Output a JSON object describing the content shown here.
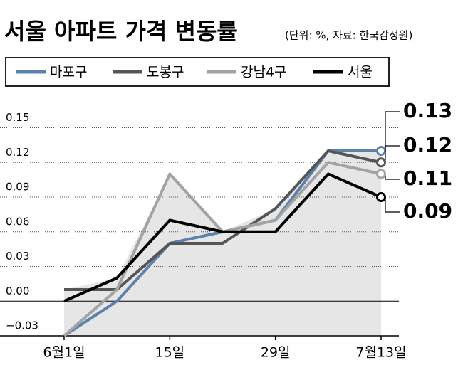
{
  "chart_data": {
    "type": "line",
    "title": "서울 아파트 가격 변동률",
    "subtitle": "(단위: %, 자료: 한국감정원)",
    "categories": [
      "6월1일",
      null,
      "15일",
      null,
      "29일",
      null,
      "7월13일"
    ],
    "series": [
      {
        "name": "마포구",
        "color": "#5b82ad",
        "values": [
          -0.03,
          0.0,
          0.05,
          0.06,
          0.07,
          0.13,
          0.13
        ]
      },
      {
        "name": "도봉구",
        "color": "#555555",
        "values": [
          0.01,
          0.01,
          0.05,
          0.05,
          0.08,
          0.13,
          0.12
        ]
      },
      {
        "name": "강남4구",
        "color": "#a3a3a3",
        "values": [
          -0.03,
          0.01,
          0.11,
          0.06,
          0.07,
          0.12,
          0.11
        ]
      },
      {
        "name": "서울",
        "color": "#000000",
        "values": [
          0.0,
          0.02,
          0.07,
          0.06,
          0.06,
          0.11,
          0.09
        ]
      }
    ],
    "ylim": [
      -0.03,
      0.17
    ],
    "yticks": [
      {
        "value": -0.03,
        "label": "−0.03"
      },
      {
        "value": 0,
        "label": "0.00"
      },
      0.03,
      0.06,
      0.09,
      0.12,
      0.15
    ],
    "grid": true
  }
}
